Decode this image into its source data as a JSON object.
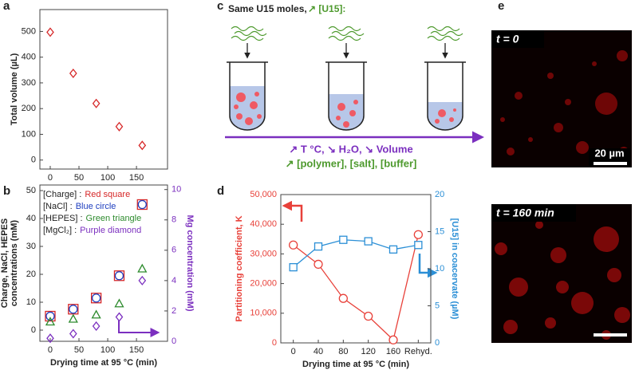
{
  "panel_labels": [
    "a",
    "b",
    "c",
    "d",
    "e"
  ],
  "chart_data": [
    {
      "type": "scatter",
      "ylabel": "Total volume (µL)",
      "x": [
        0,
        40,
        80,
        120,
        160
      ],
      "series": [
        {
          "color": "#d62728",
          "marker": "diamond",
          "values": [
            497,
            337,
            220,
            130,
            57
          ]
        }
      ],
      "xlim": [
        -18,
        204
      ],
      "ylim": [
        -35,
        585
      ],
      "xticks": [
        0,
        50,
        100,
        150
      ],
      "yticks": [
        0,
        100,
        200,
        300,
        400,
        500
      ]
    },
    {
      "type": "scatter",
      "xlabel": "Drying time at 95 °C (min)",
      "ylabel": [
        "Charge, NaCl, HEPES",
        "concentrations (mM)"
      ],
      "y2label": "Mg concentration (mM)",
      "y2_color": "#7b2fbf",
      "x": [
        0,
        40,
        80,
        120,
        160
      ],
      "series": [
        {
          "name": "[Charge] :",
          "marker_label": "Red square",
          "color": "#d62728",
          "marker": "square",
          "values": [
            5,
            7.5,
            11.5,
            19.5,
            45
          ]
        },
        {
          "name": "[NaCl] :",
          "marker_label": "Blue circle",
          "color": "#1f3fbf",
          "marker": "circle",
          "values": [
            5,
            7.5,
            11.5,
            19.5,
            45
          ]
        },
        {
          "name": "[HEPES] :",
          "marker_label": "Green triangle",
          "color": "#2e8b2e",
          "marker": "triangle",
          "values": [
            3,
            4,
            5.5,
            9.5,
            22
          ]
        },
        {
          "name": "[MgCl₂] :",
          "marker_label": "Purple diamond",
          "color": "#7b2fbf",
          "marker": "diamond",
          "axis": "y2",
          "values": [
            0.2,
            0.5,
            1,
            1.6,
            4
          ]
        }
      ],
      "xlim": [
        -18,
        204
      ],
      "ylim": [
        -4,
        52
      ],
      "y2lim": [
        0,
        10.3
      ],
      "xticks": [
        0,
        50,
        100,
        150
      ],
      "yticks": [
        0,
        10,
        20,
        30,
        40,
        50
      ],
      "y2ticks": [
        0,
        2,
        4,
        6,
        8,
        10
      ],
      "legend": "upper left"
    },
    {
      "type": "line",
      "xlabel": "Drying time at 95 °C (min)",
      "ylabel": "Partitioning coefficient, K",
      "y_color": "#e8413a",
      "y2label": "[U15] in coacervate (µM)",
      "y2_color": "#2b8fd6",
      "categories": [
        "0",
        "40",
        "80",
        "120",
        "160",
        "Rehyd."
      ],
      "series": [
        {
          "color": "#e8413a",
          "marker": "circle",
          "values": [
            33000,
            26500,
            15000,
            9000,
            1000,
            36500
          ]
        },
        {
          "color": "#2b8fd6",
          "marker": "square",
          "axis": "y2",
          "values": [
            10.2,
            13,
            13.9,
            13.7,
            12.6,
            13.2
          ]
        }
      ],
      "ylim": [
        0,
        50000
      ],
      "y2lim": [
        0,
        20
      ],
      "yticks": [
        0,
        {
          "value": 10000,
          "label": "10,000"
        },
        {
          "value": 20000,
          "label": "20,000"
        },
        {
          "value": 30000,
          "label": "30,000"
        },
        {
          "value": 40000,
          "label": "40,000"
        },
        {
          "value": 50000,
          "label": "50,000"
        }
      ],
      "y2ticks": [
        0,
        5,
        10,
        15,
        20
      ]
    }
  ],
  "diagram_c": {
    "header": "Same U15 moles,",
    "header_highlight": "↗ [U15]:",
    "line1": "↗ T °C, ↘ H₂O, ↘ Volume",
    "line2": "↗ [polymer], [salt], [buffer]"
  },
  "images_e": {
    "label_top": "t = 0",
    "scale_bar": "20 µm",
    "label_bottom": "t = 160 min"
  }
}
